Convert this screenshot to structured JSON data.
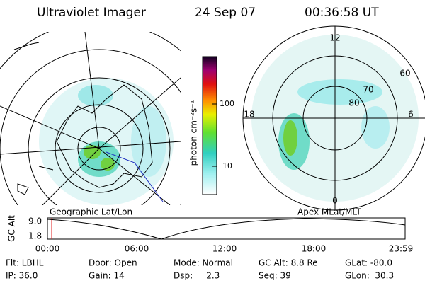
{
  "header": {
    "instrument": "Ultraviolet Imager",
    "date": "24 Sep 07",
    "time": "00:36:58 UT"
  },
  "colorbar": {
    "label": "photon cm⁻²s⁻¹",
    "ticks": [
      "100",
      "10"
    ]
  },
  "left_panel": {
    "label": "Geographic Lat/Lon"
  },
  "right_panel": {
    "label": "Apex MLat/MLT",
    "mlt_labels": [
      "12",
      "18",
      "6",
      "0"
    ],
    "mlat_labels": [
      "60",
      "70",
      "80"
    ]
  },
  "altitude_plot": {
    "axis_label": "GC Alt",
    "y_labels": [
      "9.0",
      "1.8"
    ],
    "x_labels": [
      "00:00",
      "06:00",
      "12:00",
      "18:00",
      "23:59"
    ]
  },
  "info": [
    [
      "Flt: LBHL",
      "IP: 36.0"
    ],
    [
      "Door: Open",
      "Gain: 14"
    ],
    [
      "Mode: Normal",
      "Dsp:     2.3"
    ],
    [
      "GC Alt: 8.8 Re",
      "Seq: 39"
    ],
    [
      "GLat: -80.0",
      "GLon:  30.3"
    ]
  ]
}
